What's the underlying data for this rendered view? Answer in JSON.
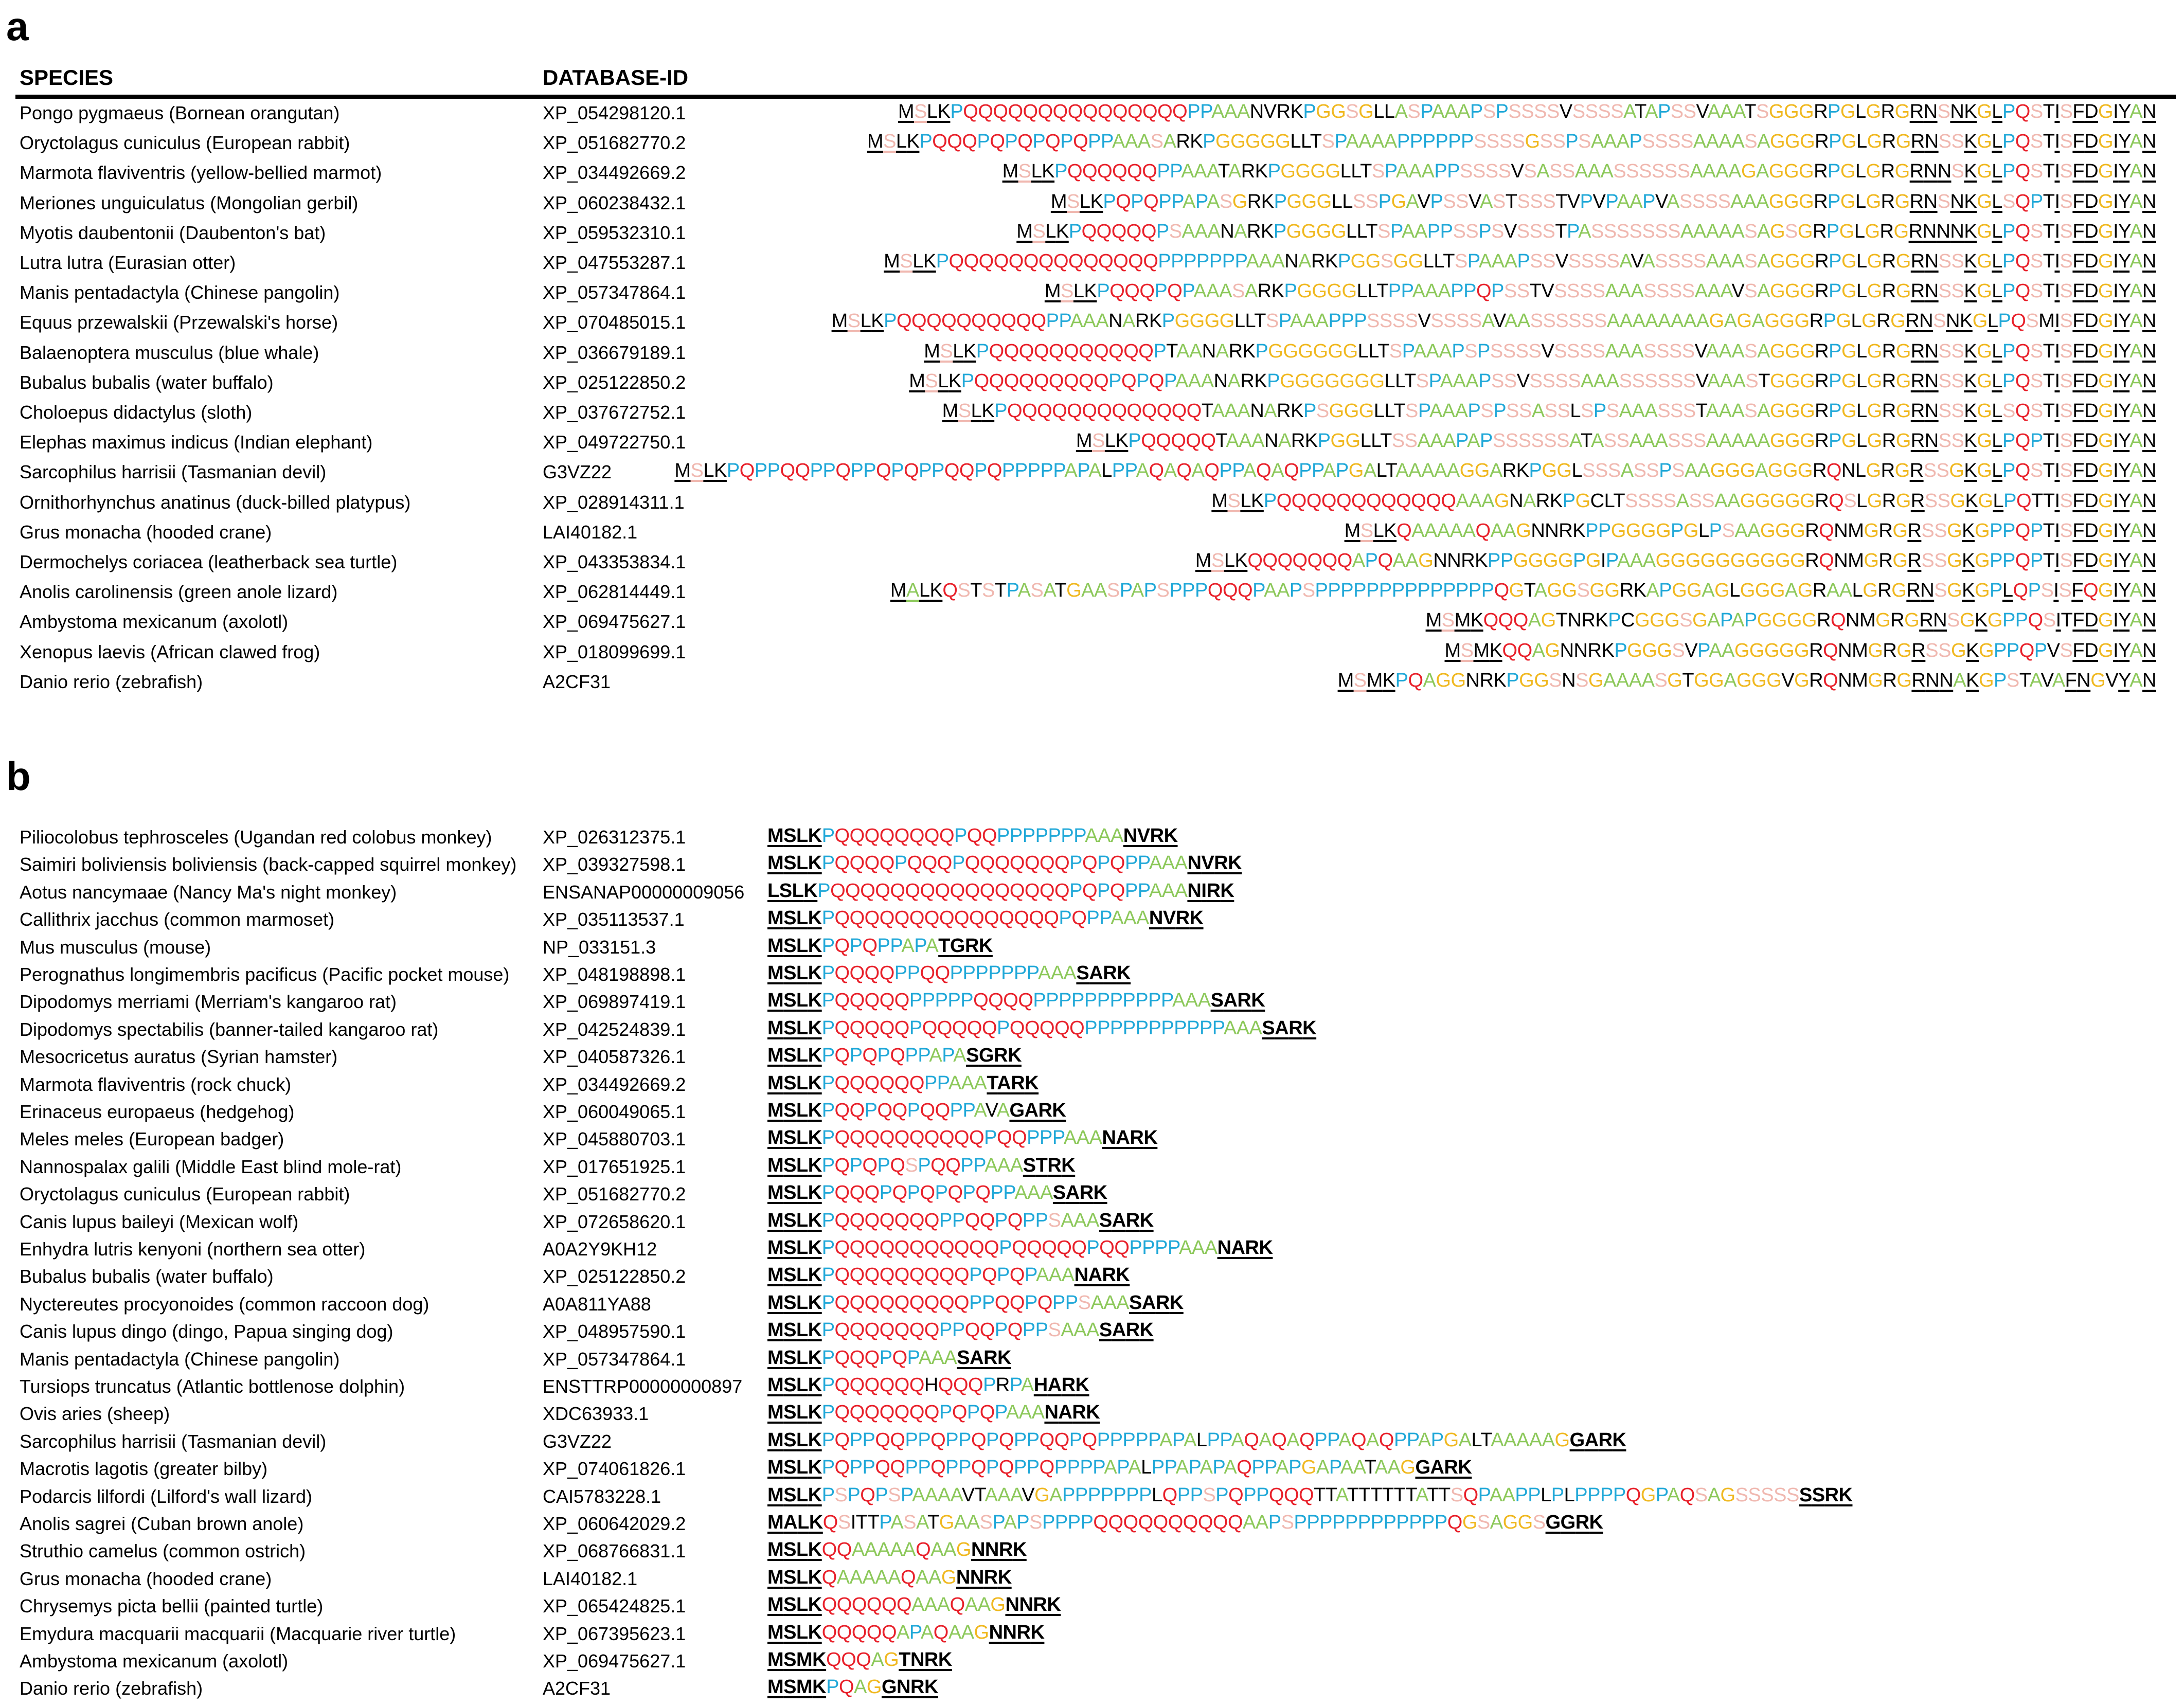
{
  "panel_a": {
    "label": "a",
    "headers": {
      "species": "SPECIES",
      "database_id": "DATABASE-ID"
    },
    "rows": [
      {
        "species": "Pongo pygmaeus (Bornean orangutan)",
        "id": "XP_054298120.1",
        "seq": "MSLKPQQQQQQQQQQQQQQQPPAAANVRKPGGSGLLASPAAAPSPSSSSVSSSSATAPSSVAAATSGGGRPGLGRGRNSNKGLPQSTISFDGIYAN"
      },
      {
        "species": "Oryctolagus cuniculus (European rabbit)",
        "id": "XP_051682770.2",
        "seq": "MSLKPQQQPQPQPQPQPPAAASARKPGGGGGLLTSPAAAAPPPPPPSSSSGSSPSAAAPSSSSAAAASAGGGRPGLGRGRNSSKGLPQSTISFDGIYAN"
      },
      {
        "species": "Marmota flaviventris (yellow-bellied marmot)",
        "id": "XP_034492669.2",
        "seq": "MSLKPQQQQQQPPAAATARKPGGGGLLTSPAAAPPSSSSVSASSAAASSSSSSAAAAGAGGGRPGLGRGRNNSKGLPQSTISFDGIYAN"
      },
      {
        "species": "Meriones unguiculatus (Mongolian gerbil)",
        "id": "XP_060238432.1",
        "seq": "MSLKPQPQPPAPASGRKPGGGLLSSPGAVPSSVASTSSSTVPVPAAPVASSSSAAAGGGRPGLGRGRNSNKGLSQPTISFDGIYAN"
      },
      {
        "species": "Myotis daubentonii (Daubenton's bat)",
        "id": "XP_059532310.1",
        "seq": "MSLKPQQQQQPSAAANARKPGGGGLLTSPAAPPSSPSVSSSTPASSSSSSSAAAAASAGSGRPGLGRGRNNNKGLPQSTISFDGIYAN"
      },
      {
        "species": "Lutra lutra (Eurasian otter)",
        "id": "XP_047553287.1",
        "seq": "MSLKPQQQQQQQQQQQQQQPPPPPPPAAANARKPGGSGGLLTSPAAAPSSVSSSSAVASSSSAAASAGGGRPGLGRGRNSSKGLPQSTISFDGIYAN"
      },
      {
        "species": "Manis pentadactyla (Chinese pangolin)",
        "id": "XP_057347864.1",
        "seq": "MSLKPQQQPQPAAASARKPGGGGLLTPPAAAPPQPSSTVSSSSAAASSSSAAAVSAGGGRPGLGRGRNSSKGLPQSTISFDGIYAN"
      },
      {
        "species": "Equus przewalskii (Przewalski's horse)",
        "id": "XP_070485015.1",
        "seq": "MSLKPQQQQQQQQQQPPAAANARKPGGGGLLTSPAAAPPPSSSSVSSSSAVAASSSSSSAAAAAAAAGAGAGGGRPGLGRGRNSNKGLPQSMISFDGIYAN"
      },
      {
        "species": "Balaenoptera musculus (blue whale)",
        "id": "XP_036679189.1",
        "seq": "MSLKPQQQQQQQQQQQPTAANARKPGGGGGGLLTSPAAAPSPSSSSVSSSSAAASSSSVAAASAGGGRPGLGRGRNSSKGLPQSTISFDGIYAN"
      },
      {
        "species": "Bubalus bubalis (water buffalo)",
        "id": "XP_025122850.2",
        "seq": "MSLKPQQQQQQQQQPQPQPAAANARKPGGGGGGGLLTSPAAAPSSVSSSSAAASSSSSSVAAASTGGGRPGLGRGRNSSKGLPQSTISFDGIYAN"
      },
      {
        "species": "Choloepus didactylus (sloth)",
        "id": "XP_037672752.1",
        "seq": "MSLKPQQQQQQQQQQQQQTAAANARKPSGGGLLTSPAAAPSPSSASSLSPSAAASSSTAAASAGGGRPGLGRGRNSSKGLSQSTISFDGIYAN"
      },
      {
        "species": "Elephas maximus indicus (Indian elephant)",
        "id": "XP_049722750.1",
        "seq": "MSLKPQQQQQTAAANARKPGGLLTSSAAAPAPSSSSSSATASSAAASSSAAAAAGGGRPGLGRGRNSSKGLPQPTISFDGIYAN"
      },
      {
        "species": "Sarcophilus harrisii (Tasmanian devil)",
        "id": "G3VZ22",
        "seq": "MSLKPQPPQQPPQPPQPQPPQQPQPPPPPAPALPPAQAQAQPPAQAQPPAPGALTAAAAAGGARKPGGLSSSASSPSAAGGGAGGGRQNLGRGRSSGKGLPQSTISFDGIYAN"
      },
      {
        "species": "Ornithorhynchus anatinus (duck-billed platypus)",
        "id": "XP_028914311.1",
        "seq": "MSLKPQQQQQQQQQQQQAAAGNARKPGCLTSSSSASSAAGGGGGRQSLGRGRSSGKGLPQTTISFDGIYAN"
      },
      {
        "species": "Grus monacha (hooded crane)",
        "id": "LAI40182.1",
        "seq": "MSLKQAAAAAQAAGNNRKPPGGGGPGLPSAAGGGRQNMGRGRSSGKGPPQPTISFDGIYAN"
      },
      {
        "species": "Dermochelys coriacea (leatherback sea turtle)",
        "id": "XP_043353834.1",
        "seq": "MSLKQQQQQQQAPQAAGNNRKPPGGGGPGIPAAAGGGGGGGGGGRQNMGRGRSSGKGPPQPTISFDGIYAN"
      },
      {
        "species": "Anolis carolinensis (green anole lizard)",
        "id": "XP_062814449.1",
        "seq": "MALKQSTSTPASATGAASPAPSPPPQQQPAAPSPPPPPPPPPPPPPPQGTAGGSGGRKAPGGAGLGGGAGRAALGRGRNSGKGPLQPSISFQGIYAN"
      },
      {
        "species": "Ambystoma mexicanum (axolotl)",
        "id": "XP_069475627.1",
        "seq": "MSMKQQQAGTNRKPCGGGSGAPAPGGGGRQNMGRGRNSGKGPPQSITFDGIYAN"
      },
      {
        "species": "Xenopus laevis (African clawed frog)",
        "id": "XP_018099699.1",
        "seq": "MSMKQQAGNNRKPGGGSVPAAGGGGGRQNMGRGRSSGKGPPQPVSFDGIYAN"
      },
      {
        "species": "Danio rerio (zebrafish)",
        "id": "A2CF31",
        "seq": "MSMKPQAGGNRKPGGSNSGAAAASGTGGAGGGVGRQNMGRGRNNAKGPSTAVAFNGVYAN"
      }
    ]
  },
  "panel_b": {
    "label": "b",
    "rows": [
      {
        "species": "Piliocolobus tephrosceles (Ugandan red colobus monkey)",
        "id": "XP_026312375.1",
        "seq": "MSLKPQQQQQQQQPQQPPPPPPPAAANVRK"
      },
      {
        "species": "Saimiri boliviensis boliviensis (back-capped squirrel monkey)",
        "id": "XP_039327598.1",
        "seq": "MSLKPQQQQPQQQPQQQQQQQPQPQPPAAANVRK"
      },
      {
        "species": "Aotus nancymaae (Nancy Ma's night monkey)",
        "id": "ENSANAP00000009056",
        "seq": "LSLKPQQQQQQQQQQQQQQQQPQPQPPAAANIRK"
      },
      {
        "species": "Callithrix jacchus (common marmoset)",
        "id": "XP_035113537.1",
        "seq": "MSLKPQQQQQQQQQQQQQQQPQPPAAANVRK"
      },
      {
        "species": "Mus musculus (mouse)",
        "id": "NP_033151.3",
        "seq": "MSLKPQPQPPAPATGRK"
      },
      {
        "species": "Perognathus longimembris pacificus (Pacific pocket mouse)",
        "id": "XP_048198898.1",
        "seq": "MSLKPQQQQPPQQPPPPPPPAAASARK"
      },
      {
        "species": "Dipodomys merriami (Merriam's kangaroo rat)",
        "id": "XP_069897419.1",
        "seq": "MSLKPQQQQQPPPPPQQQQPPPPPPPPPPPAAASARK"
      },
      {
        "species": "Dipodomys spectabilis (banner-tailed kangaroo rat)",
        "id": "XP_042524839.1",
        "seq": "MSLKPQQQQQPQQQQQPQQQQQPPPPPPPPPPPAAASARK"
      },
      {
        "species": "Mesocricetus auratus (Syrian hamster)",
        "id": "XP_040587326.1",
        "seq": "MSLKPQPQPQPPAPASGRK"
      },
      {
        "species": "Marmota flaviventris (rock chuck)",
        "id": "XP_034492669.2",
        "seq": "MSLKPQQQQQQPPAAATARK"
      },
      {
        "species": "Erinaceus europaeus (hedgehog)",
        "id": "XP_060049065.1",
        "seq": "MSLKPQQPQQPQQPPAVAGARK"
      },
      {
        "species": "Meles meles (European badger)",
        "id": "XP_045880703.1",
        "seq": "MSLKPQQQQQQQQQQPQQPPPAAANARK"
      },
      {
        "species": "Nannospalax galili (Middle East blind mole-rat)",
        "id": "XP_017651925.1",
        "seq": "MSLKPQPQPQSPQQPPAAASTRK"
      },
      {
        "species": "Oryctolagus cuniculus (European rabbit)",
        "id": "XP_051682770.2",
        "seq": "MSLKPQQQPQPQPQPQPPAAASARK"
      },
      {
        "species": "Canis lupus baileyi (Mexican wolf)",
        "id": "XP_072658620.1",
        "seq": "MSLKPQQQQQQQPPQQPQPPSAAASARK"
      },
      {
        "species": "Enhydra lutris kenyoni (northern sea otter)",
        "id": "A0A2Y9KH12",
        "seq": "MSLKPQQQQQQQQQQQPQQQQQPQQPPPPAAANARK"
      },
      {
        "species": "Bubalus bubalis (water buffalo)",
        "id": "XP_025122850.2",
        "seq": "MSLKPQQQQQQQQQPQPQPAAANARK"
      },
      {
        "species": "Nyctereutes procyonoides (common raccoon dog)",
        "id": "A0A811YA88",
        "seq": "MSLKPQQQQQQQQQPPQQPQPPSAAASARK"
      },
      {
        "species": "Canis lupus dingo (dingo, Papua singing dog)",
        "id": "XP_048957590.1",
        "seq": "MSLKPQQQQQQQPPQQPQPPSAAASARK"
      },
      {
        "species": "Manis pentadactyla (Chinese pangolin)",
        "id": "XP_057347864.1",
        "seq": "MSLKPQQQPQPAAASARK"
      },
      {
        "species": "Tursiops truncatus (Atlantic bottlenose dolphin)",
        "id": "ENSTTRP00000000897",
        "seq": "MSLKPQQQQQQHQQQPRPAHARK"
      },
      {
        "species": "Ovis aries (sheep)",
        "id": "XDC63933.1",
        "seq": "MSLKPQQQQQQQPQPQPAAANARK"
      },
      {
        "species": "Sarcophilus harrisii (Tasmanian devil)",
        "id": "G3VZ22",
        "seq": "MSLKPQPPQQPPQPPQPQPPQQPQPPPPPAPALPPAQAQAQPPAQAQPPAPGALTAAAAAGGARK"
      },
      {
        "species": "Macrotis lagotis (greater bilby)",
        "id": "XP_074061826.1",
        "seq": "MSLKPQPPQQPPQPPQPQPPQPPPPAPALPPAPAPAQPPAPGAPAATAAGGARK"
      },
      {
        "species": "Podarcis lilfordi (Lilford's wall lizard)",
        "id": "CAI5783228.1",
        "seq": "MSLKPSPQPSPAAAAVTAAAVGAPPPPPPPLQPPSPQPPQQQTTATTTTTTATTSQPAAPPLPLPPPPQGPAQSAGSSSSSSSRK"
      },
      {
        "species": "Anolis sagrei (Cuban brown anole)",
        "id": "XP_060642029.2",
        "seq": "MALKQSITTPASATGAASPAPSPPPPQQQQQQQQQQAAPSPPPPPPPPPPPPQGSAGGSGGRK"
      },
      {
        "species": "Struthio camelus (common ostrich)",
        "id": "XP_068766831.1",
        "seq": "MSLKQQAAAAAQAAGNNRK"
      },
      {
        "species": "Grus monacha (hooded crane)",
        "id": "LAI40182.1",
        "seq": "MSLKQAAAAAQAAGNNRK"
      },
      {
        "species": "Chrysemys picta bellii (painted turtle)",
        "id": "XP_065424825.1",
        "seq": "MSLKQQQQQQAAAQAAGNNRK"
      },
      {
        "species": "Emydura macquarii macquarii (Macquarie river turtle)",
        "id": "XP_067395623.1",
        "seq": "MSLKQQQQQAPAQAAGNNRK"
      },
      {
        "species": "Ambystoma mexicanum (axolotl)",
        "id": "XP_069475627.1",
        "seq": "MSMKQQQAGTNRK"
      },
      {
        "species": "Danio rerio (zebrafish)",
        "id": "A2CF31",
        "seq": "MSMKPQAGGNRK"
      }
    ]
  },
  "residue_colors": {
    "Q": "#e8202a",
    "P": "#20a8d8",
    "A": "#8cc85a",
    "S": "#f0b8b0",
    "G": "#f0b820",
    "default": "#000000"
  }
}
